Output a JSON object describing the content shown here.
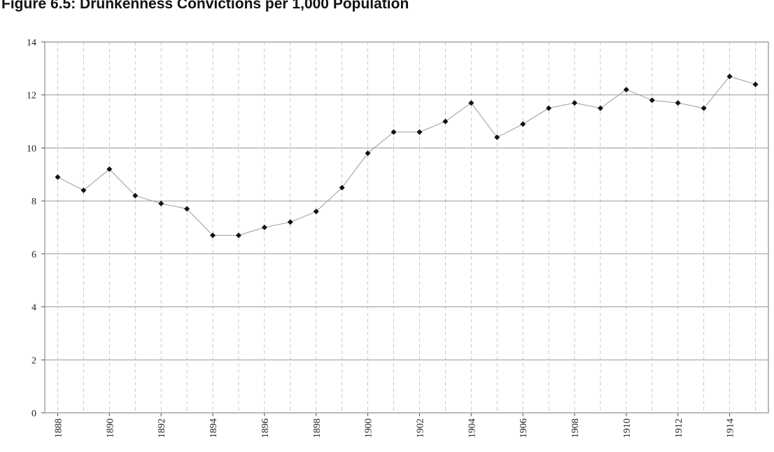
{
  "figure_title": "Figure 6.5: Drunkenness Convictions per 1,000 Population",
  "chart_data": {
    "type": "line",
    "title": "",
    "xlabel": "",
    "ylabel": "",
    "x": [
      1888,
      1889,
      1890,
      1891,
      1892,
      1893,
      1894,
      1895,
      1896,
      1897,
      1898,
      1899,
      1900,
      1901,
      1902,
      1903,
      1904,
      1905,
      1906,
      1907,
      1908,
      1909,
      1910,
      1911,
      1912,
      1913,
      1914,
      1915
    ],
    "series": [
      {
        "name": "",
        "values": [
          8.9,
          8.4,
          9.2,
          8.2,
          7.9,
          7.7,
          6.7,
          6.7,
          7.0,
          7.2,
          7.6,
          8.5,
          9.8,
          10.6,
          10.6,
          11.0,
          11.7,
          10.4,
          10.9,
          11.5,
          11.7,
          11.5,
          12.2,
          11.8,
          11.7,
          11.5,
          12.7,
          12.4
        ],
        "color": "#111111"
      }
    ],
    "xticks": [
      "1888",
      "1890",
      "1892",
      "1894",
      "1896",
      "1898",
      "1900",
      "1902",
      "1904",
      "1906",
      "1908",
      "1910",
      "1912",
      "1914"
    ],
    "yticks": [
      "0",
      "2",
      "4",
      "6",
      "8",
      "10",
      "12",
      "14"
    ],
    "xlim": [
      1887.5,
      1915.5
    ],
    "ylim": [
      0,
      14
    ],
    "grid": "horizontal solid, vertical dashed",
    "legend": "none"
  }
}
